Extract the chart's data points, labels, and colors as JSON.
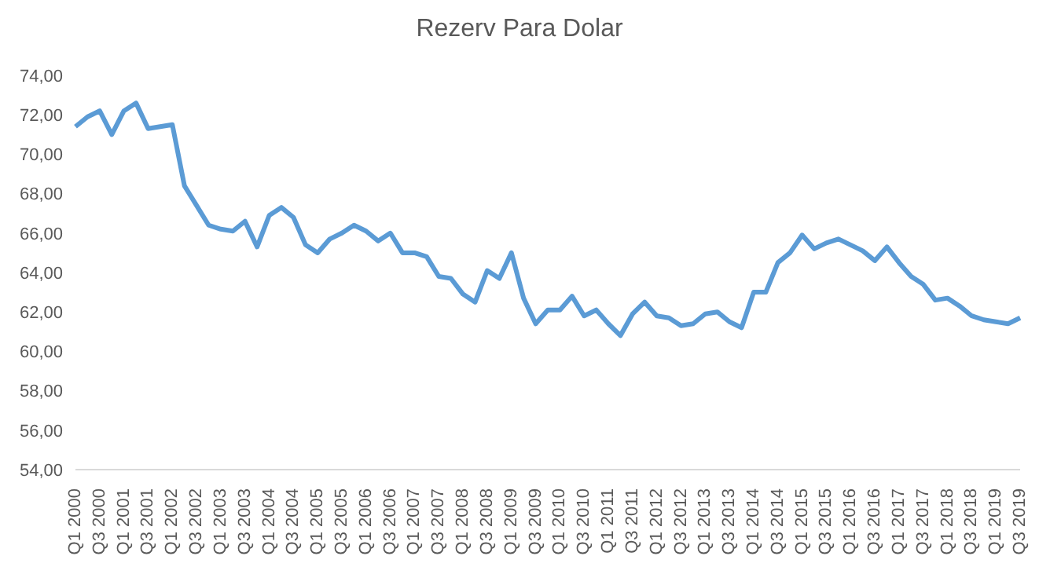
{
  "chart_data": {
    "type": "line",
    "title": "Rezerv Para Dolar",
    "categories": [
      "Q1 2000",
      null,
      "Q3 2000",
      null,
      "Q1 2001",
      null,
      "Q3 2001",
      null,
      "Q1 2002",
      null,
      "Q3 2002",
      null,
      "Q1 2003",
      null,
      "Q3 2003",
      null,
      "Q1 2004",
      null,
      "Q3 2004",
      null,
      "Q1 2005",
      null,
      "Q3 2005",
      null,
      "Q1 2006",
      null,
      "Q3 2006",
      null,
      "Q1 2007",
      null,
      "Q3 2007",
      null,
      "Q1 2008",
      null,
      "Q3 2008",
      null,
      "Q1 2009",
      null,
      "Q3 2009",
      null,
      "Q1 2010",
      null,
      "Q3 2010",
      null,
      "Q1 2011",
      null,
      "Q3 2011",
      null,
      "Q1 2012",
      null,
      "Q3 2012",
      null,
      "Q1 2013",
      null,
      "Q3 2013",
      null,
      "Q1 2014",
      null,
      "Q3 2014",
      null,
      "Q1 2015",
      null,
      "Q3 2015",
      null,
      "Q1 2016",
      null,
      "Q3 2016",
      null,
      "Q1 2017",
      null,
      "Q3 2017",
      null,
      "Q1 2018",
      null,
      "Q3 2018",
      null,
      "Q1 2019",
      null,
      "Q3 2019"
    ],
    "series": [
      {
        "color": "#5b9bd5",
        "values": [
          71.4,
          71.9,
          72.2,
          71.0,
          72.2,
          72.6,
          71.3,
          71.4,
          71.5,
          68.4,
          67.4,
          66.4,
          66.2,
          66.1,
          66.6,
          65.3,
          66.9,
          67.3,
          66.8,
          65.4,
          65.0,
          65.7,
          66.0,
          66.4,
          66.1,
          65.6,
          66.0,
          65.0,
          65.0,
          64.8,
          63.8,
          63.7,
          62.9,
          62.5,
          64.1,
          63.7,
          65.0,
          62.7,
          61.4,
          62.1,
          62.1,
          62.8,
          61.8,
          62.1,
          61.4,
          60.8,
          61.9,
          62.5,
          61.8,
          61.7,
          61.3,
          61.4,
          61.9,
          62.0,
          61.5,
          61.2,
          63.0,
          63.0,
          64.5,
          65.0,
          65.9,
          65.2,
          65.5,
          65.7,
          65.4,
          65.1,
          64.6,
          65.3,
          64.5,
          63.8,
          63.4,
          62.6,
          62.7,
          62.3,
          61.8,
          61.6,
          61.5,
          61.4,
          61.7
        ]
      }
    ],
    "ylim": [
      54,
      74
    ],
    "yticks": [
      {
        "value": 54,
        "label": "54,00"
      },
      {
        "value": 56,
        "label": "56,00"
      },
      {
        "value": 58,
        "label": "58,00"
      },
      {
        "value": 60,
        "label": "60,00"
      },
      {
        "value": 62,
        "label": "62,00"
      },
      {
        "value": 64,
        "label": "64,00"
      },
      {
        "value": 66,
        "label": "66,00"
      },
      {
        "value": 68,
        "label": "68,00"
      },
      {
        "value": 70,
        "label": "70,00"
      },
      {
        "value": 72,
        "label": "72,00"
      },
      {
        "value": 74,
        "label": "74,00"
      }
    ],
    "marker": "none",
    "line_style": "solid"
  }
}
